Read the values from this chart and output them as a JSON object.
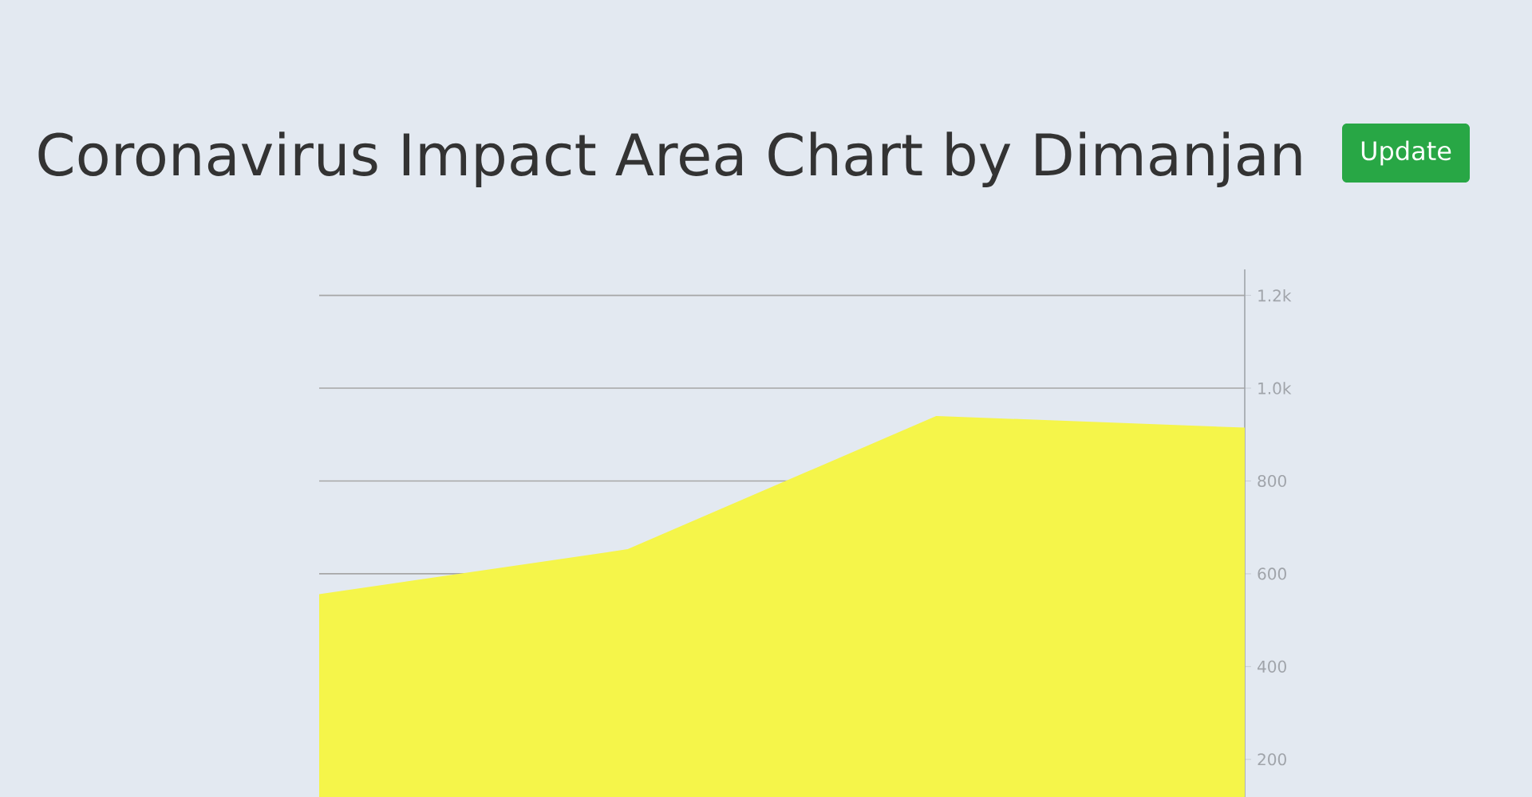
{
  "chart_data": {
    "type": "area",
    "title": "Coronavirus Impact Area Chart by Dimanjan",
    "annotations": [
      "Update"
    ],
    "categories": [
      null,
      null,
      null,
      null
    ],
    "values": [
      556,
      653,
      940,
      915
    ],
    "color": "#f5f54a",
    "ylim": [
      119,
      1256
    ],
    "yticks": [
      200,
      400,
      600,
      800,
      {
        "value": 1000,
        "label": "1.0k"
      },
      {
        "value": 1200,
        "label": "1.2k"
      }
    ],
    "grid": "y",
    "tick_labels": "y"
  }
}
